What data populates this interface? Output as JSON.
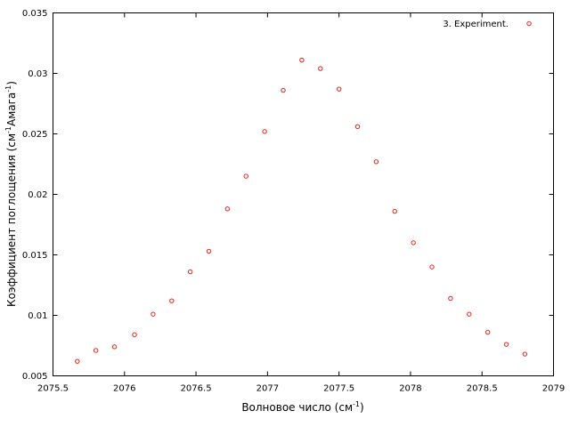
{
  "chart_data": {
    "type": "scatter",
    "title": "",
    "xlabel": {
      "main": "Волновое число (см",
      "sup": "-1",
      "tail": ")"
    },
    "ylabel": {
      "main": "Коэффициент поглощения (см",
      "sup1": "-1",
      "middle": "Амага",
      "sup2": "-1",
      "tail": ")"
    },
    "xlim": [
      2075.5,
      2079
    ],
    "ylim": [
      0.005,
      0.035
    ],
    "xticks": [
      2075.5,
      2076,
      2076.5,
      2077,
      2077.5,
      2078,
      2078.5,
      2079
    ],
    "xtick_labels": [
      "2075.5",
      "2076",
      "2076.5",
      "2077",
      "2077.5",
      "2078",
      "2078.5",
      "2079"
    ],
    "yticks": [
      0.005,
      0.01,
      0.015,
      0.02,
      0.025,
      0.03,
      0.035
    ],
    "ytick_labels": [
      "0.005",
      "0.01",
      "0.015",
      "0.02",
      "0.025",
      "0.03",
      "0.035"
    ],
    "grid": false,
    "legend_position": "top-right",
    "series": [
      {
        "name": "3. Experiment.",
        "color": "#e8211a",
        "marker": "open-circle",
        "x": [
          2075.67,
          2075.8,
          2075.93,
          2076.07,
          2076.2,
          2076.33,
          2076.46,
          2076.59,
          2076.72,
          2076.85,
          2076.98,
          2077.11,
          2077.24,
          2077.37,
          2077.5,
          2077.63,
          2077.76,
          2077.89,
          2078.02,
          2078.15,
          2078.28,
          2078.41,
          2078.54,
          2078.67,
          2078.8
        ],
        "y": [
          0.0062,
          0.0071,
          0.0074,
          0.0084,
          0.0101,
          0.0112,
          0.0136,
          0.0153,
          0.0188,
          0.0215,
          0.0252,
          0.0286,
          0.0311,
          0.0304,
          0.0287,
          0.0256,
          0.0227,
          0.0186,
          0.016,
          0.014,
          0.0114,
          0.0101,
          0.0086,
          0.0076,
          0.0068
        ]
      }
    ]
  }
}
